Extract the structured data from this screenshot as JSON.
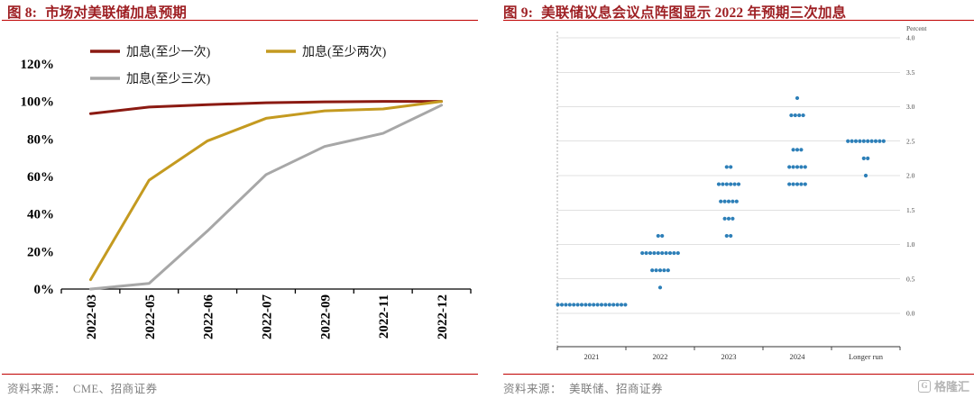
{
  "colors": {
    "title_red": "#9E1F23",
    "rule_red": "#C00000",
    "source_gray": "#7F7F7F",
    "watermark_gray": "#B5B5B5"
  },
  "watermark": {
    "logo_letter": "G",
    "text": "格隆汇"
  },
  "figure8": {
    "title_prefix": "图 8:",
    "title": "市场对美联储加息预期",
    "source_label": "资料来源：",
    "source": "CME、招商证券"
  },
  "figure9": {
    "title_prefix": "图 9:",
    "title": "美联储议息会议点阵图显示 2022 年预期三次加息",
    "source_label": "资料来源：",
    "source": "美联储、招商证券"
  },
  "chart_data": [
    {
      "type": "line",
      "title": "市场对美联储加息预期",
      "categories": [
        "2022-03",
        "2022-05",
        "2022-06",
        "2022-07",
        "2022-09",
        "2022-11",
        "2022-12"
      ],
      "series": [
        {
          "name": "加息(至少一次)",
          "color": "#8B1A12",
          "values": [
            93.5,
            97,
            98.3,
            99.3,
            99.8,
            100,
            100
          ]
        },
        {
          "name": "加息(至少两次)",
          "color": "#C49A20",
          "values": [
            5,
            58,
            79,
            91,
            95,
            96,
            100
          ]
        },
        {
          "name": "加息(至少三次)",
          "color": "#A7A7A7",
          "values": [
            0,
            3,
            31,
            61,
            76,
            83,
            98
          ]
        }
      ],
      "ylim": [
        0,
        120
      ],
      "ytick_step": 20,
      "yticks": [
        "0%",
        "20%",
        "40%",
        "60%",
        "80%",
        "100%",
        "120%"
      ],
      "legend_position": "top-left",
      "grid": false
    },
    {
      "type": "scatter",
      "title": "美联储议息会议点阵图显示 2022 年预期三次加息",
      "ylabel": "Percent",
      "categories": [
        "2021",
        "2022",
        "2023",
        "2024",
        "Longer run"
      ],
      "ylim": [
        0,
        4
      ],
      "yticks": [
        4.0,
        3.5,
        3.0,
        2.5,
        2.0,
        1.5,
        1.0,
        0.5,
        0.0
      ],
      "ytick_side": "right",
      "grid": true,
      "dot_color": "#2D7FB8",
      "dots": [
        {
          "col": 0,
          "percent": 0.125,
          "count": 18
        },
        {
          "col": 1,
          "percent": 1.125,
          "count": 2
        },
        {
          "col": 1,
          "percent": 0.875,
          "count": 10
        },
        {
          "col": 1,
          "percent": 0.625,
          "count": 5
        },
        {
          "col": 1,
          "percent": 0.375,
          "count": 1
        },
        {
          "col": 2,
          "percent": 2.125,
          "count": 2
        },
        {
          "col": 2,
          "percent": 1.875,
          "count": 6
        },
        {
          "col": 2,
          "percent": 1.625,
          "count": 5
        },
        {
          "col": 2,
          "percent": 1.375,
          "count": 3
        },
        {
          "col": 2,
          "percent": 1.125,
          "count": 2
        },
        {
          "col": 3,
          "percent": 3.125,
          "count": 1
        },
        {
          "col": 3,
          "percent": 2.875,
          "count": 4
        },
        {
          "col": 3,
          "percent": 2.375,
          "count": 3
        },
        {
          "col": 3,
          "percent": 2.125,
          "count": 5
        },
        {
          "col": 3,
          "percent": 1.875,
          "count": 5
        },
        {
          "col": 4,
          "percent": 2.5,
          "count": 10
        },
        {
          "col": 4,
          "percent": 2.25,
          "count": 2
        },
        {
          "col": 4,
          "percent": 2.0,
          "count": 1
        }
      ]
    }
  ]
}
